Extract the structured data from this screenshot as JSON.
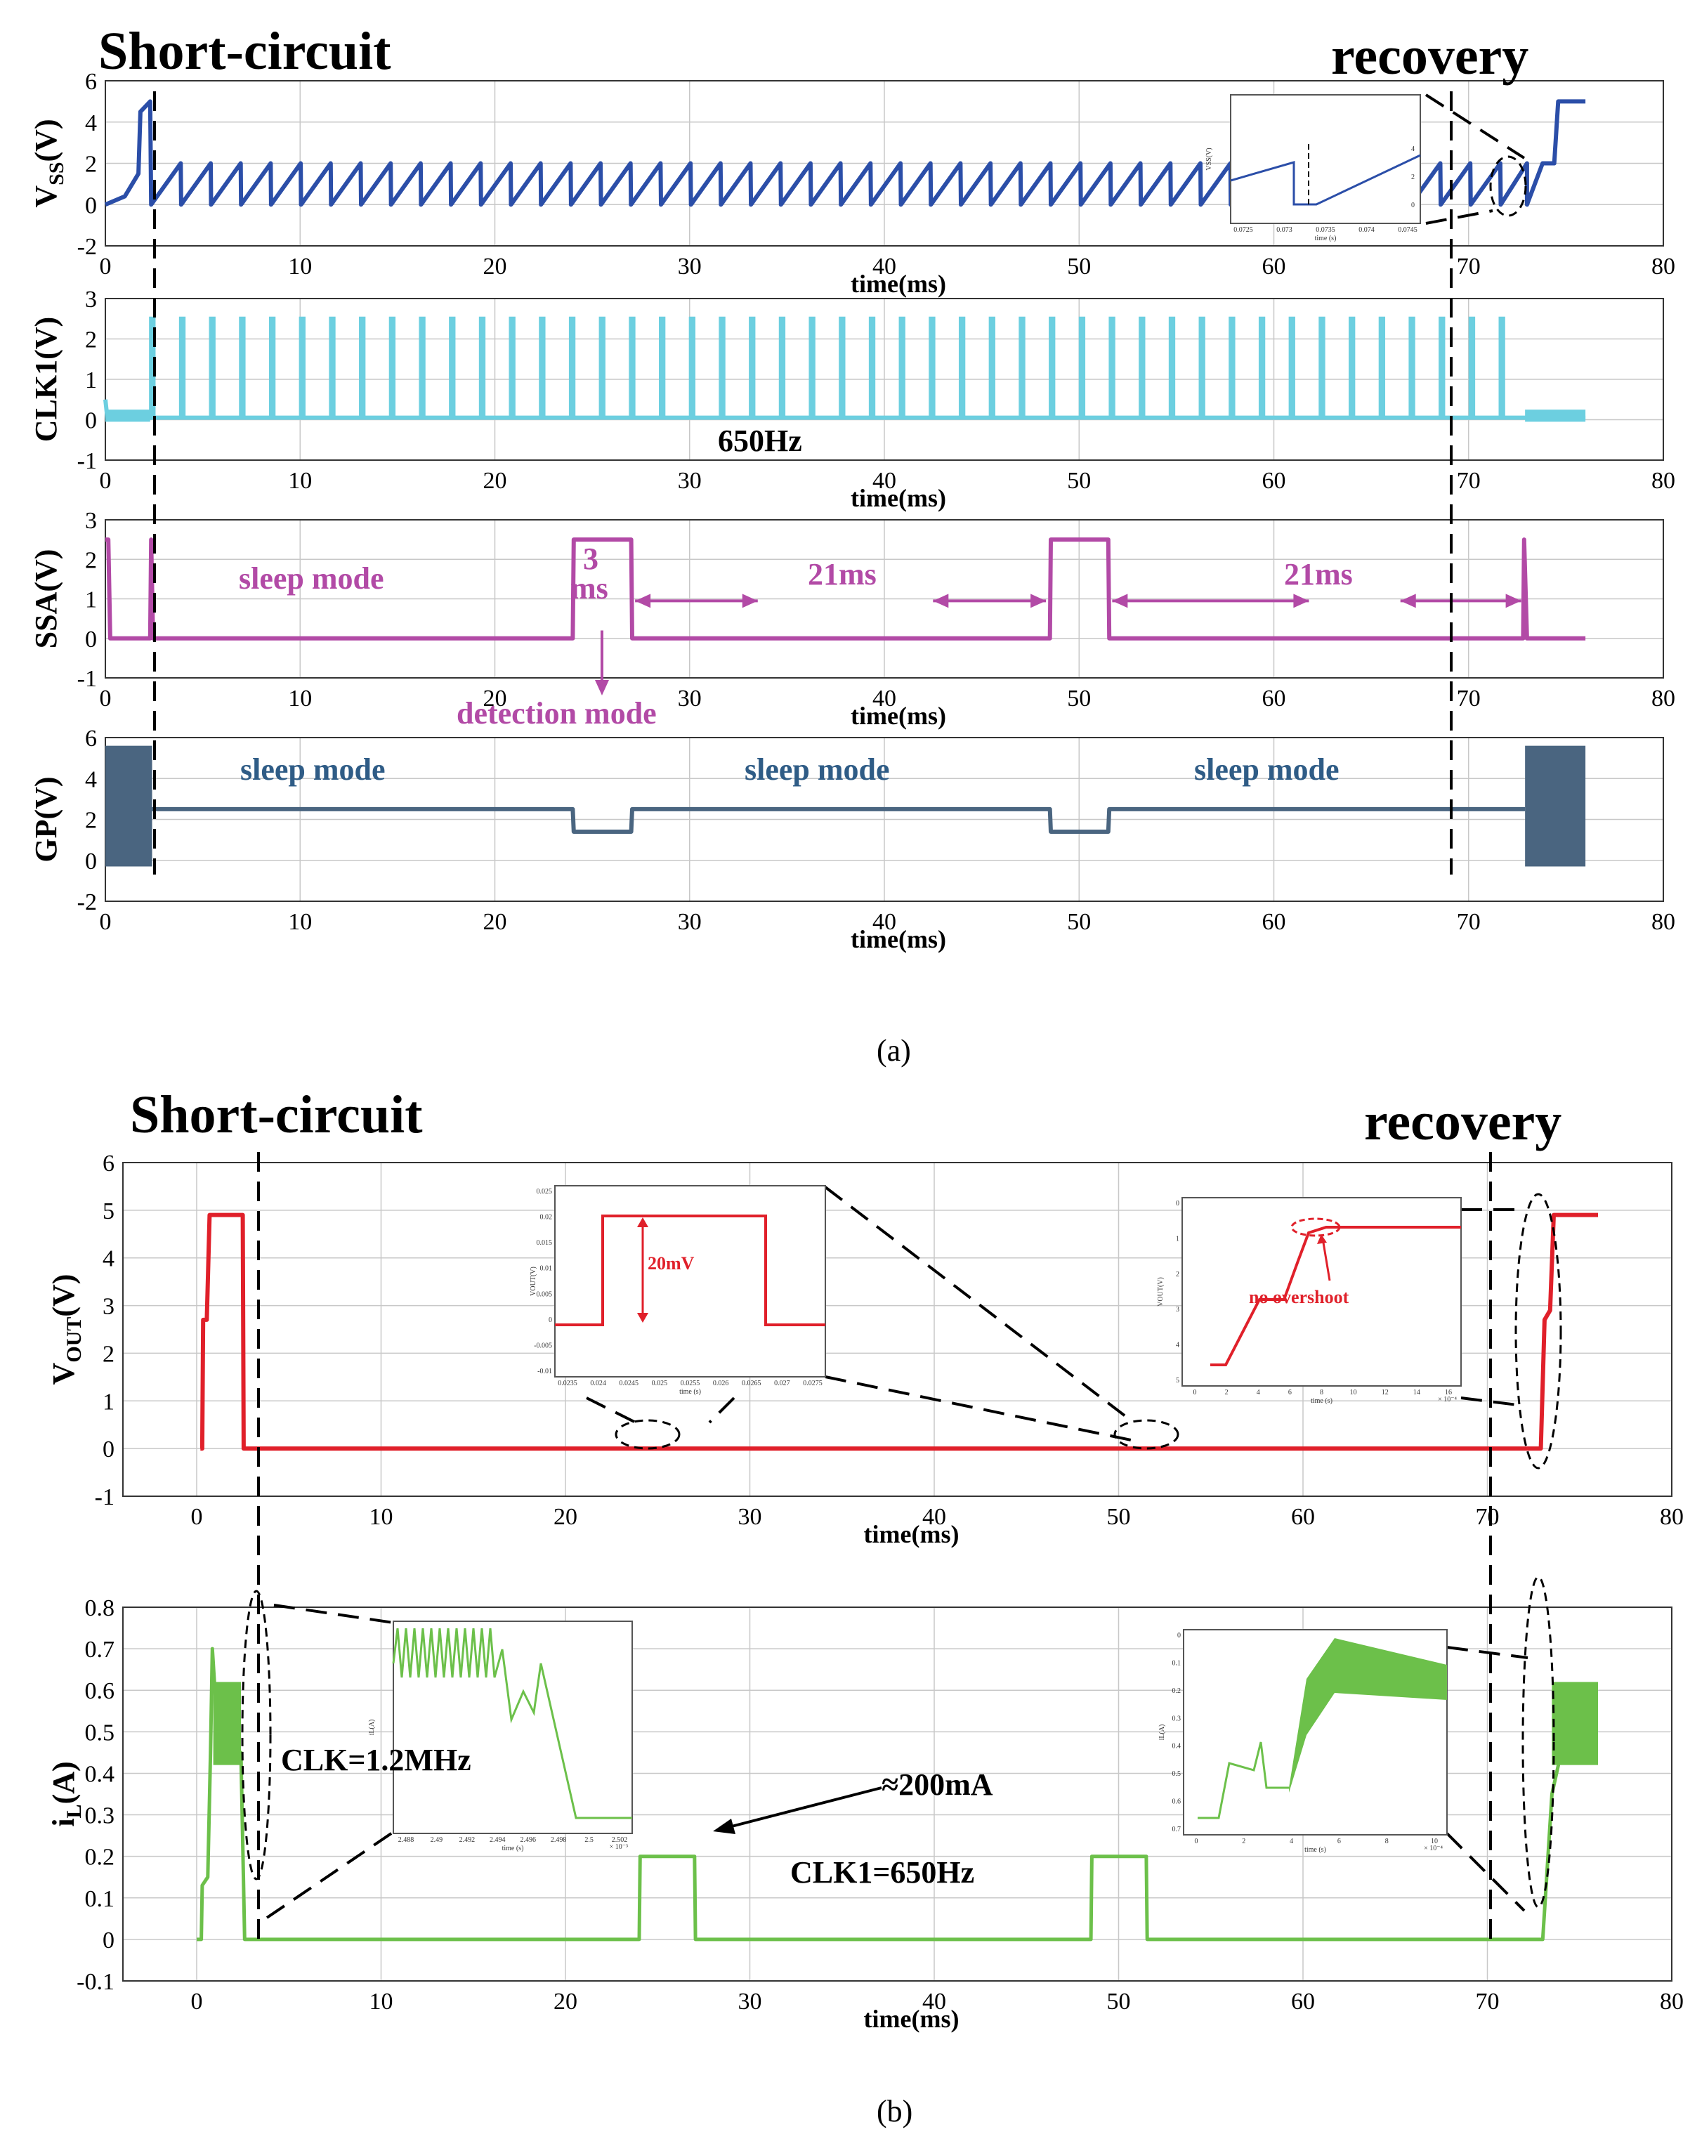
{
  "chart_data": [
    {
      "id": "vss",
      "type": "line",
      "panel": "a",
      "ylabel": "V",
      "ylabel_sub": "SS",
      "ylabel_tail": "(V)",
      "xlabel": "time(ms)",
      "xlim": [
        0,
        80
      ],
      "ylim": [
        -2,
        6
      ],
      "xticks": [
        0,
        10,
        20,
        30,
        40,
        50,
        60,
        70,
        80
      ],
      "yticks": [
        -2,
        0,
        2,
        4,
        6
      ],
      "series": [
        {
          "name": "VSS",
          "color": "#2b4ea8",
          "description": "startup ramp to 5 V until ~2.3 ms, then sawtooth 0-2 V with period ~1.54 ms until ~73 ms, then recovery ramp to 5 V at ~74.5 ms",
          "points": [
            [
              0,
              0
            ],
            [
              1,
              0.4
            ],
            [
              1.7,
              1.5
            ],
            [
              1.8,
              4.5
            ],
            [
              2.3,
              5
            ],
            [
              2.35,
              0
            ],
            [
              73,
              0
            ],
            [
              73.8,
              2
            ],
            [
              74.4,
              2
            ],
            [
              74.6,
              5
            ],
            [
              76,
              5
            ]
          ],
          "sawtooth": {
            "start": 2.35,
            "end": 73,
            "period": 1.54,
            "low": 0,
            "high": 2
          }
        }
      ],
      "inset": {
        "xticks": [
          "0.0725",
          "0.073",
          "0.0735",
          "0.074",
          "0.0745"
        ],
        "xlabel": "time (s)",
        "ylabel": "VSS(V)",
        "yticks": [
          "0",
          "2",
          "4"
        ]
      }
    },
    {
      "id": "clk1",
      "type": "line",
      "panel": "a",
      "ylabel": "CLK1(V)",
      "xlabel": "time(ms)",
      "xlim": [
        0,
        80
      ],
      "ylim": [
        -1,
        3
      ],
      "xticks": [
        0,
        10,
        20,
        30,
        40,
        50,
        60,
        70,
        80
      ],
      "yticks": [
        -1,
        0,
        1,
        2,
        3
      ],
      "series": [
        {
          "name": "CLK1",
          "color": "#6ccfe0",
          "description": "pulse train of 2.5 V narrow pulses, 650 Hz, from ~2.3 ms to ~73 ms; near 0 V before and after",
          "pulses": {
            "start": 2.35,
            "end": 73,
            "period": 1.54,
            "high": 2.5,
            "base": 0.05
          }
        }
      ],
      "annotation": "650Hz"
    },
    {
      "id": "ssa",
      "type": "line",
      "panel": "a",
      "ylabel": "SSA(V)",
      "xlabel": "time(ms)",
      "xlim": [
        0,
        80
      ],
      "ylim": [
        -1,
        3
      ],
      "xticks": [
        0,
        10,
        20,
        30,
        40,
        50,
        60,
        70,
        80
      ],
      "yticks": [
        -1,
        0,
        1,
        2,
        3
      ],
      "series": [
        {
          "name": "SSA",
          "color": "#b24aa6",
          "points": [
            [
              0,
              2.5
            ],
            [
              0.15,
              2.5
            ],
            [
              0.25,
              0
            ],
            [
              2.3,
              0
            ],
            [
              2.35,
              2.5
            ],
            [
              2.45,
              0
            ],
            [
              24,
              0
            ],
            [
              24.05,
              2.5
            ],
            [
              27,
              2.5
            ],
            [
              27.05,
              0
            ],
            [
              48.5,
              0
            ],
            [
              48.55,
              2.5
            ],
            [
              51.5,
              2.5
            ],
            [
              51.55,
              0
            ],
            [
              72.8,
              0
            ],
            [
              72.85,
              2.5
            ],
            [
              73,
              0
            ],
            [
              76,
              0
            ]
          ]
        }
      ],
      "annotations": [
        "sleep mode",
        "3",
        "ms",
        "21ms",
        "21ms",
        "detection mode"
      ]
    },
    {
      "id": "gp",
      "type": "line",
      "panel": "a",
      "ylabel": "GP(V)",
      "xlabel": "time(ms)",
      "xlim": [
        0,
        80
      ],
      "ylim": [
        -2,
        6
      ],
      "xticks": [
        0,
        10,
        20,
        30,
        40,
        50,
        60,
        70,
        80
      ],
      "yticks": [
        -2,
        0,
        2,
        4,
        6
      ],
      "series": [
        {
          "name": "GP",
          "color": "#4a6580",
          "points": [
            [
              2.4,
              2.5
            ],
            [
              24,
              2.5
            ],
            [
              24.05,
              1.4
            ],
            [
              27,
              1.4
            ],
            [
              27.05,
              2.5
            ],
            [
              48.5,
              2.5
            ],
            [
              48.55,
              1.4
            ],
            [
              51.5,
              1.4
            ],
            [
              51.55,
              2.5
            ],
            [
              72.9,
              2.5
            ]
          ],
          "switching_bands": [
            [
              0,
              2.4,
              -0.3,
              5.6
            ],
            [
              72.9,
              76,
              -0.3,
              5.6
            ]
          ]
        }
      ],
      "annotations": [
        "sleep mode",
        "sleep mode",
        "sleep mode"
      ]
    },
    {
      "id": "vout",
      "type": "line",
      "panel": "b",
      "ylabel": "V",
      "ylabel_sub": "OUT",
      "ylabel_tail": "(V)",
      "xlabel": "time(ms)",
      "xlim": [
        -4,
        80
      ],
      "ylim": [
        -1,
        6
      ],
      "xticks": [
        0,
        10,
        20,
        30,
        40,
        50,
        60,
        70,
        80
      ],
      "yticks": [
        -1,
        0,
        1,
        2,
        3,
        4,
        5,
        6
      ],
      "series": [
        {
          "name": "VOUT",
          "color": "#e0202a",
          "points": [
            [
              0.2,
              0
            ],
            [
              0.3,
              0
            ],
            [
              0.35,
              2.7
            ],
            [
              0.55,
              2.7
            ],
            [
              0.7,
              4.9
            ],
            [
              2.5,
              4.9
            ],
            [
              2.55,
              0
            ],
            [
              72.9,
              0
            ],
            [
              73.1,
              2.7
            ],
            [
              73.4,
              2.9
            ],
            [
              73.6,
              4.9
            ],
            [
              76,
              4.9
            ]
          ]
        }
      ],
      "inset1": {
        "label": "20mV",
        "ylabel": "VOUT(V)",
        "yticks": [
          "0.025",
          "0.02",
          "0.015",
          "0.01",
          "0.005",
          "0",
          "-0.005",
          "-0.01"
        ],
        "xticks": [
          "0.0235",
          "0.024",
          "0.0245",
          "0.025",
          "0.0255",
          "0.026",
          "0.0265",
          "0.027",
          "0.0275"
        ],
        "xlabel": "time (s)"
      },
      "inset2": {
        "label": "no overshoot",
        "ylabel": "VOUT(V)",
        "yticks": [
          "0",
          "1",
          "2",
          "3",
          "4",
          "5"
        ],
        "xticks": [
          "0",
          "2",
          "4",
          "6",
          "8",
          "10",
          "12",
          "14",
          "16"
        ],
        "xlabel": "time (s)",
        "scale": "× 10⁻⁴"
      }
    },
    {
      "id": "il",
      "type": "line",
      "panel": "b",
      "ylabel": "i",
      "ylabel_sub": "L",
      "ylabel_tail": "(A)",
      "xlabel": "time(ms)",
      "xlim": [
        -4,
        80
      ],
      "ylim": [
        -0.1,
        0.8
      ],
      "xticks": [
        0,
        10,
        20,
        30,
        40,
        50,
        60,
        70,
        80
      ],
      "yticks": [
        -0.1,
        0,
        0.1,
        0.2,
        0.3,
        0.4,
        0.5,
        0.6,
        0.7,
        0.8
      ],
      "series": [
        {
          "name": "iL",
          "color": "#6cc04a",
          "points": [
            [
              0,
              0
            ],
            [
              0.25,
              0
            ],
            [
              0.3,
              0.13
            ],
            [
              0.6,
              0.15
            ],
            [
              0.75,
              0.45
            ],
            [
              0.85,
              0.7
            ],
            [
              1.2,
              0.45
            ],
            [
              2.4,
              0.45
            ],
            [
              2.6,
              0
            ],
            [
              24,
              0
            ],
            [
              24.05,
              0.2
            ],
            [
              27,
              0.2
            ],
            [
              27.05,
              0
            ],
            [
              48.5,
              0
            ],
            [
              48.55,
              0.2
            ],
            [
              51.5,
              0.2
            ],
            [
              51.55,
              0
            ],
            [
              73,
              0
            ],
            [
              73.5,
              0.35
            ],
            [
              74,
              0.45
            ],
            [
              76,
              0.45
            ]
          ],
          "switching_bands": [
            [
              0.9,
              2.4,
              0.42,
              0.62
            ],
            [
              73.5,
              76,
              0.42,
              0.62
            ]
          ]
        }
      ],
      "annotations": [
        "CLK=1.2MHz",
        "≈200mA",
        "CLK1=650Hz"
      ],
      "inset1": {
        "xticks": [
          "2.488",
          "2.49",
          "2.492",
          "2.494",
          "2.496",
          "2.498",
          "2.5",
          "2.502"
        ],
        "xlabel": "time (s)",
        "ylabel": "iL(A)",
        "scale": "× 10⁻³"
      },
      "inset2": {
        "yticks": [
          "0",
          "0.1",
          "0.2",
          "0.3",
          "0.4",
          "0.5",
          "0.6",
          "0.7"
        ],
        "xticks": [
          "0",
          "2",
          "4",
          "6",
          "8",
          "10"
        ],
        "xlabel": "time (s)",
        "ylabel": "iL(A)",
        "scale": "× 10⁻⁴"
      }
    }
  ],
  "labels": {
    "short_a": "Short-circuit",
    "recovery_a": "recovery",
    "short_b": "Short-circuit",
    "recovery_b": "recovery",
    "caption_a": "(a)",
    "caption_b": "(b)"
  }
}
